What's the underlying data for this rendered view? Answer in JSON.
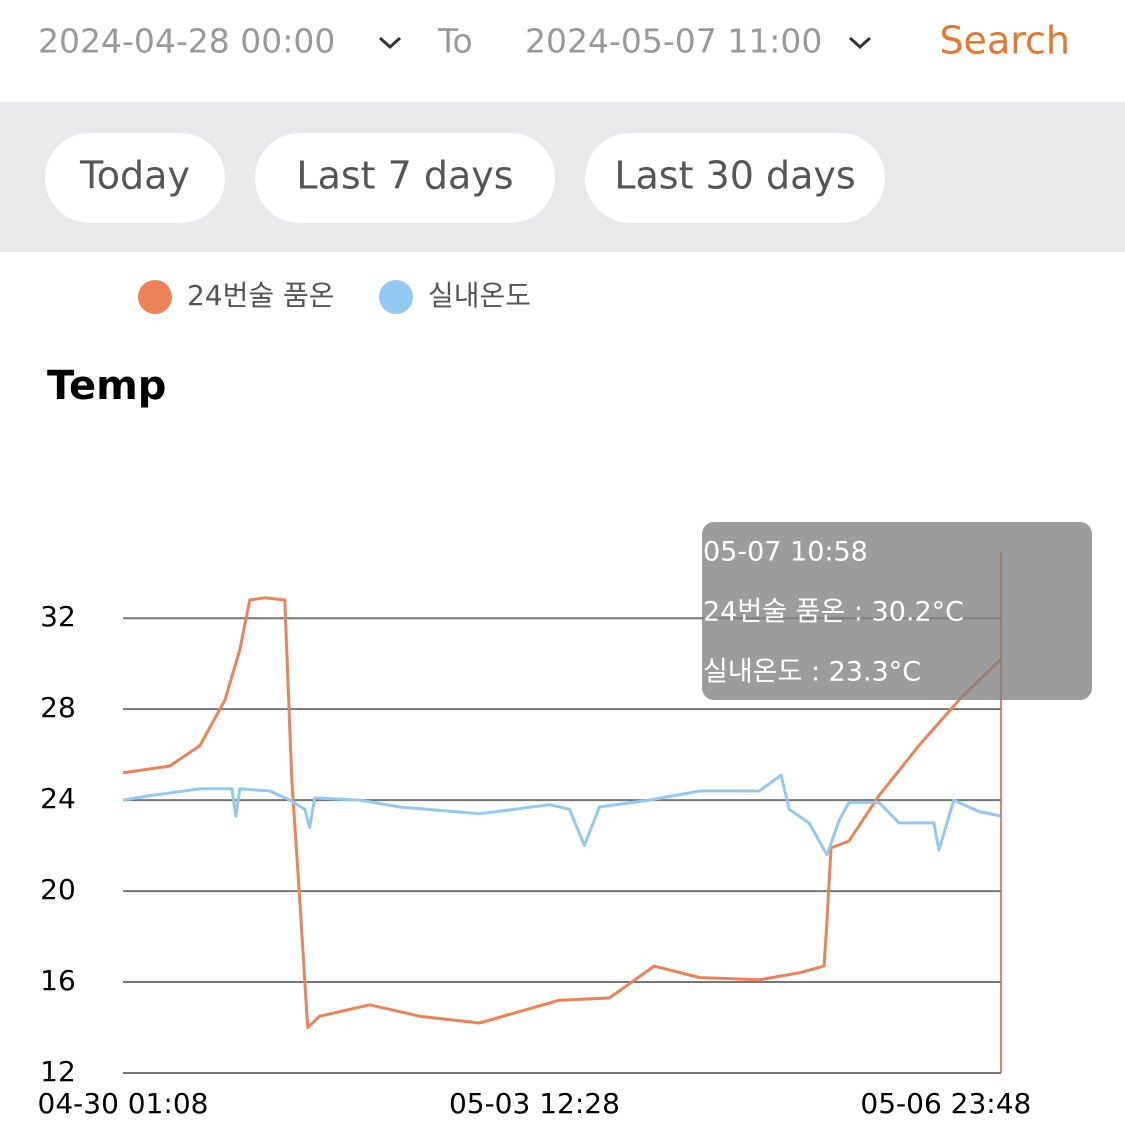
{
  "header": {
    "start": "2024-04-28 00:00",
    "to": "To",
    "end": "2024-05-07 11:00",
    "search": "Search"
  },
  "presets": [
    "Today",
    "Last 7 days",
    "Last 30 days"
  ],
  "chart_data": {
    "type": "line",
    "title": "Temp",
    "series": [
      {
        "name": "24번술 품온",
        "color": "#ec8256",
        "x": [
          "04-30 01:08",
          "04-30 10:38",
          "04-30 16:42",
          "04-30 21:46",
          "05-01 00:48",
          "05-01 02:49",
          "05-01 05:51",
          "05-01 09:54",
          "05-01 11:19",
          "05-01 12:56",
          "05-01 14:33",
          "05-01 16:59",
          "05-02 03:06",
          "05-02 13:12",
          "05-03 01:21",
          "05-03 09:26",
          "05-03 17:31",
          "05-04 03:38",
          "05-04 12:44",
          "05-04 21:51",
          "05-05 09:59",
          "05-05 18:04",
          "05-05 23:08",
          "05-05 23:44",
          "05-06 00:32",
          "05-06 04:11",
          "05-06 10:15",
          "05-06 18:20",
          "05-07 02:26",
          "05-07 10:58"
        ],
        "values": [
          25.2,
          25.5,
          26.4,
          28.4,
          30.6,
          32.8,
          32.9,
          32.8,
          24.9,
          19.6,
          14.0,
          14.5,
          15.0,
          14.5,
          14.2,
          14.7,
          15.2,
          15.3,
          16.7,
          16.2,
          16.1,
          16.4,
          16.7,
          18.7,
          21.9,
          22.2,
          24.2,
          26.4,
          28.4,
          30.2
        ]
      },
      {
        "name": "실내온도",
        "color": "#93c8f2",
        "x": [
          "04-30 01:08",
          "04-30 06:36",
          "04-30 16:42",
          "04-30 23:11",
          "04-30 23:59",
          "05-01 00:48",
          "05-01 06:52",
          "05-01 10:55",
          "05-01 13:57",
          "05-01 14:57",
          "05-01 15:58",
          "05-02 01:04",
          "05-02 09:10",
          "05-03 01:21",
          "05-03 15:30",
          "05-03 19:33",
          "05-03 22:35",
          "05-04 01:37",
          "05-04 11:44",
          "05-04 21:51",
          "05-05 09:59",
          "05-05 14:26",
          "05-05 16:03",
          "05-05 20:05",
          "05-05 23:44",
          "05-06 02:10",
          "05-06 04:11",
          "05-06 10:15",
          "05-06 14:18",
          "05-06 21:22",
          "05-06 22:23",
          "05-07 01:25",
          "05-07 06:29",
          "05-07 10:58"
        ],
        "values": [
          24.0,
          24.2,
          24.5,
          24.5,
          23.3,
          24.5,
          24.4,
          24.0,
          23.6,
          22.8,
          24.1,
          24.0,
          23.7,
          23.4,
          23.8,
          23.6,
          22.0,
          23.7,
          24.0,
          24.4,
          24.4,
          25.1,
          23.6,
          23.0,
          21.6,
          23.1,
          23.9,
          23.9,
          23.0,
          23.0,
          21.8,
          24.0,
          23.5,
          23.3
        ]
      }
    ],
    "xlim": [
      "04-30 01:08",
      "05-07 10:58"
    ],
    "xticks": [
      "04-30 01:08",
      "05-03 12:28",
      "05-06 23:48"
    ],
    "ylim": [
      12,
      35
    ],
    "yticks": [
      12,
      16,
      20,
      24,
      28,
      32
    ],
    "grid": true,
    "tooltip": {
      "title": "05-07 10:58",
      "lines": [
        "24번술 품온 : 30.2°C",
        "실내온도 : 23.3°C"
      ]
    }
  }
}
